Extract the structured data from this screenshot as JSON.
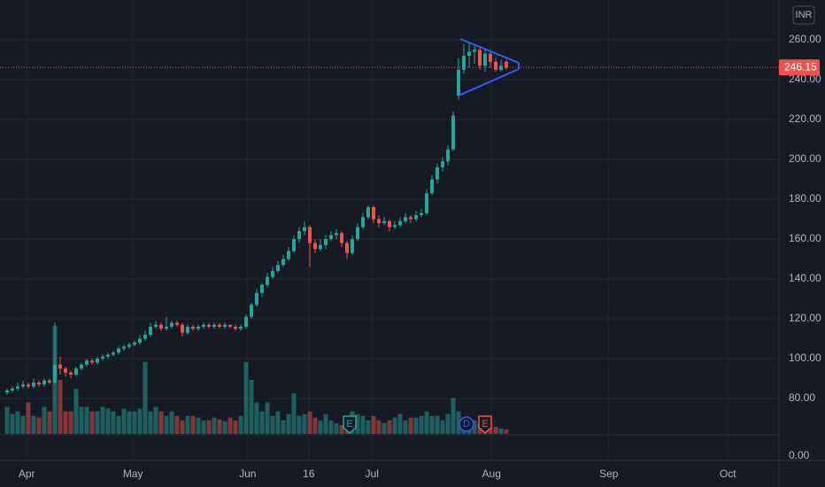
{
  "chart_data": {
    "type": "candlestick",
    "currency": "INR",
    "up_color": "#26a69a",
    "down_color": "#ef5350",
    "grid": true,
    "open": [
      83,
      84,
      85,
      86,
      87,
      86,
      88,
      87,
      89,
      88,
      97,
      95,
      93,
      92,
      95,
      97,
      99,
      98,
      100,
      101,
      102,
      103,
      105,
      106,
      107,
      108,
      110,
      112,
      116,
      117,
      115,
      116,
      118,
      117,
      113,
      116,
      115,
      116,
      117,
      116,
      117,
      116,
      117,
      116,
      115,
      116,
      121,
      127,
      133,
      137,
      141,
      144,
      147,
      150,
      154,
      160,
      164,
      166,
      158,
      155,
      157,
      160,
      162,
      163,
      158,
      153,
      160,
      166,
      171,
      176,
      170,
      168,
      169,
      166,
      167,
      169,
      171,
      170,
      172,
      173,
      183,
      190,
      196,
      199,
      205,
      232,
      245,
      252,
      254,
      255,
      247,
      253,
      249,
      245,
      249
    ],
    "high": [
      85,
      86,
      88,
      89,
      88,
      90,
      89,
      90,
      90,
      118,
      101,
      96,
      94,
      96,
      98,
      100,
      100,
      101,
      102,
      103,
      104,
      106,
      107,
      108,
      109,
      112,
      114,
      118,
      119,
      118,
      121,
      119,
      119,
      118,
      117,
      117,
      117,
      118,
      118,
      118,
      118,
      118,
      117,
      117,
      117,
      122,
      128,
      135,
      138,
      143,
      146,
      149,
      152,
      156,
      162,
      166,
      169,
      167,
      160,
      160,
      162,
      164,
      165,
      164,
      159,
      162,
      168,
      173,
      177,
      177,
      172,
      171,
      170,
      169,
      171,
      173,
      172,
      174,
      175,
      185,
      192,
      198,
      201,
      207,
      224,
      251,
      258,
      259,
      258,
      256,
      255,
      254,
      251,
      250,
      250
    ],
    "low": [
      82,
      83,
      84,
      85,
      85,
      85,
      86,
      86,
      87,
      87,
      92,
      91,
      90,
      91,
      94,
      96,
      97,
      97,
      99,
      100,
      101,
      102,
      104,
      105,
      106,
      107,
      109,
      111,
      115,
      114,
      114,
      115,
      116,
      111,
      112,
      114,
      114,
      115,
      115,
      115,
      115,
      115,
      115,
      114,
      114,
      115,
      120,
      126,
      131,
      136,
      140,
      143,
      146,
      149,
      153,
      158,
      162,
      146,
      153,
      154,
      155,
      159,
      160,
      156,
      150,
      152,
      159,
      165,
      170,
      168,
      166,
      167,
      164,
      165,
      166,
      168,
      168,
      169,
      171,
      172,
      182,
      188,
      194,
      197,
      204,
      230,
      243,
      246,
      248,
      245,
      244,
      246,
      244,
      244,
      245
    ],
    "close": [
      84,
      85,
      86,
      87,
      86,
      88,
      87,
      89,
      88,
      97,
      95,
      93,
      92,
      95,
      97,
      99,
      98,
      100,
      101,
      102,
      103,
      105,
      106,
      107,
      108,
      110,
      112,
      116,
      117,
      115,
      116,
      118,
      117,
      113,
      116,
      115,
      116,
      117,
      116,
      117,
      116,
      117,
      116,
      115,
      116,
      121,
      127,
      133,
      137,
      141,
      144,
      147,
      150,
      154,
      160,
      164,
      166,
      158,
      155,
      157,
      160,
      162,
      163,
      158,
      153,
      160,
      166,
      171,
      176,
      170,
      168,
      169,
      166,
      167,
      169,
      171,
      170,
      172,
      173,
      183,
      190,
      196,
      199,
      205,
      222,
      245,
      252,
      254,
      255,
      247,
      253,
      249,
      245,
      247,
      246.15
    ],
    "volume": [
      3,
      2.2,
      2.5,
      2,
      3.5,
      2,
      1.8,
      3,
      2.5,
      12,
      6,
      2.5,
      2.5,
      5,
      3,
      3,
      2.5,
      2.5,
      3,
      2.8,
      2.5,
      2,
      2.8,
      2.5,
      2.5,
      2.8,
      8,
      2.5,
      3,
      2.5,
      2,
      2.5,
      2,
      1.5,
      2,
      2,
      1.8,
      1.5,
      1.5,
      1.8,
      1.6,
      1.4,
      1.8,
      1.5,
      2,
      8,
      6,
      3.5,
      2.5,
      3.5,
      2,
      2.5,
      1.5,
      2.2,
      4.5,
      2,
      2.2,
      2.5,
      1.8,
      1.5,
      2.2,
      1.5,
      1.2,
      1,
      1.5,
      2.5,
      2.2,
      2,
      1.5,
      2,
      1.5,
      1.2,
      1.5,
      1.8,
      2.2,
      1.5,
      1.8,
      1.8,
      2,
      2.5,
      2,
      2,
      1.5,
      2.2,
      4,
      2.5,
      1.5,
      1.2,
      1.5,
      1.2,
      1.5,
      0.8,
      0.8,
      0.6,
      0.5
    ],
    "xlim": [
      -1.33,
      145.33
    ],
    "xticks": [
      {
        "value": 3.7,
        "label": "Apr"
      },
      {
        "value": 23.7,
        "label": "May"
      },
      {
        "value": 45.3,
        "label": "Jun"
      },
      {
        "value": 56.8,
        "label": "16"
      },
      {
        "value": 68.7,
        "label": "Jul"
      },
      {
        "value": 91.2,
        "label": "Aug"
      },
      {
        "value": 113.3,
        "label": "Sep"
      },
      {
        "value": 135.7,
        "label": "Oct"
      }
    ],
    "ylim": [
      48.89,
      280
    ],
    "yticks": [
      {
        "value": 80,
        "label": "80.00"
      },
      {
        "value": 100,
        "label": "100.00"
      },
      {
        "value": 120,
        "label": "120.00"
      },
      {
        "value": 140,
        "label": "140.00"
      },
      {
        "value": 160,
        "label": "160.00"
      },
      {
        "value": 180,
        "label": "180.00"
      },
      {
        "value": 200,
        "label": "200.00"
      },
      {
        "value": 220,
        "label": "220.00"
      },
      {
        "value": 240,
        "label": "240.00"
      },
      {
        "value": 260,
        "label": "260.00"
      }
    ],
    "y2lim": [
      0,
      12
    ],
    "y2ticks": [
      {
        "value": 0,
        "label": "0.00"
      }
    ],
    "events": [
      {
        "label": "E",
        "index": 64.5,
        "color": "#26a69a"
      },
      {
        "label": "D",
        "index": 86.5,
        "color": "#2962ff"
      },
      {
        "label": "E",
        "index": 90,
        "color": "#ef5350"
      }
    ]
  }
}
